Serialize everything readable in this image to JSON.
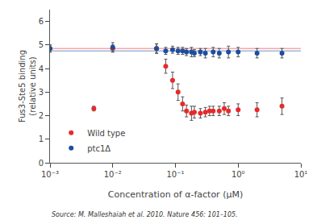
{
  "chart_data": {
    "type": "scatter",
    "xlabel": "Concentration of α-factor (μM)",
    "ylabel": "Fus3-Ste5 binding\n(relative units)",
    "annotations": [
      "Source: M. Malleshaiah et al. 2010. Nature 456: 101–105."
    ],
    "log": "x",
    "xlim": [
      0.001,
      10
    ],
    "xticks": [
      {
        "value": 0.001,
        "label": "10⁻³"
      },
      {
        "value": 0.01,
        "label": "10⁻²"
      },
      {
        "value": 0.1,
        "label": "10⁻¹"
      },
      {
        "value": 1,
        "label": "10⁰"
      },
      {
        "value": 10,
        "label": "10¹"
      }
    ],
    "ylim": [
      0.0,
      6.5
    ],
    "yticks": [
      0,
      1,
      2,
      3,
      4,
      5,
      6
    ],
    "grid": false,
    "legend": "lower left",
    "series": [
      {
        "name": "Wild type",
        "color": "#e8292a",
        "marker": "circle",
        "reference_line": 4.85,
        "x": [
          0.001,
          0.005,
          0.01,
          0.05,
          0.07,
          0.09,
          0.11,
          0.13,
          0.15,
          0.18,
          0.2,
          0.25,
          0.3,
          0.35,
          0.4,
          0.5,
          0.6,
          0.7,
          1.0,
          2.0,
          5.0
        ],
        "values": [
          4.85,
          2.3,
          4.85,
          4.85,
          4.1,
          3.5,
          3.0,
          2.5,
          2.2,
          2.1,
          2.15,
          2.1,
          2.15,
          2.2,
          2.2,
          2.2,
          2.3,
          2.2,
          2.25,
          2.25,
          2.4
        ],
        "yerr": [
          0.15,
          0.1,
          0.15,
          0.2,
          0.3,
          0.35,
          0.35,
          0.3,
          0.25,
          0.3,
          0.25,
          0.2,
          0.2,
          0.2,
          0.2,
          0.2,
          0.25,
          0.2,
          0.25,
          0.3,
          0.35
        ]
      },
      {
        "name": "ptc1Δ",
        "color": "#1a4fa0",
        "marker": "circle",
        "reference_line": 4.75,
        "x": [
          0.001,
          0.01,
          0.05,
          0.07,
          0.09,
          0.11,
          0.13,
          0.15,
          0.18,
          0.2,
          0.25,
          0.3,
          0.4,
          0.5,
          0.7,
          1.0,
          2.0,
          5.0
        ],
        "values": [
          4.85,
          4.9,
          4.85,
          4.75,
          4.8,
          4.75,
          4.75,
          4.7,
          4.7,
          4.65,
          4.7,
          4.65,
          4.7,
          4.65,
          4.7,
          4.7,
          4.65,
          4.65
        ],
        "yerr": [
          0.15,
          0.2,
          0.2,
          0.15,
          0.15,
          0.15,
          0.15,
          0.15,
          0.2,
          0.15,
          0.15,
          0.2,
          0.2,
          0.2,
          0.25,
          0.2,
          0.2,
          0.2
        ]
      }
    ]
  }
}
